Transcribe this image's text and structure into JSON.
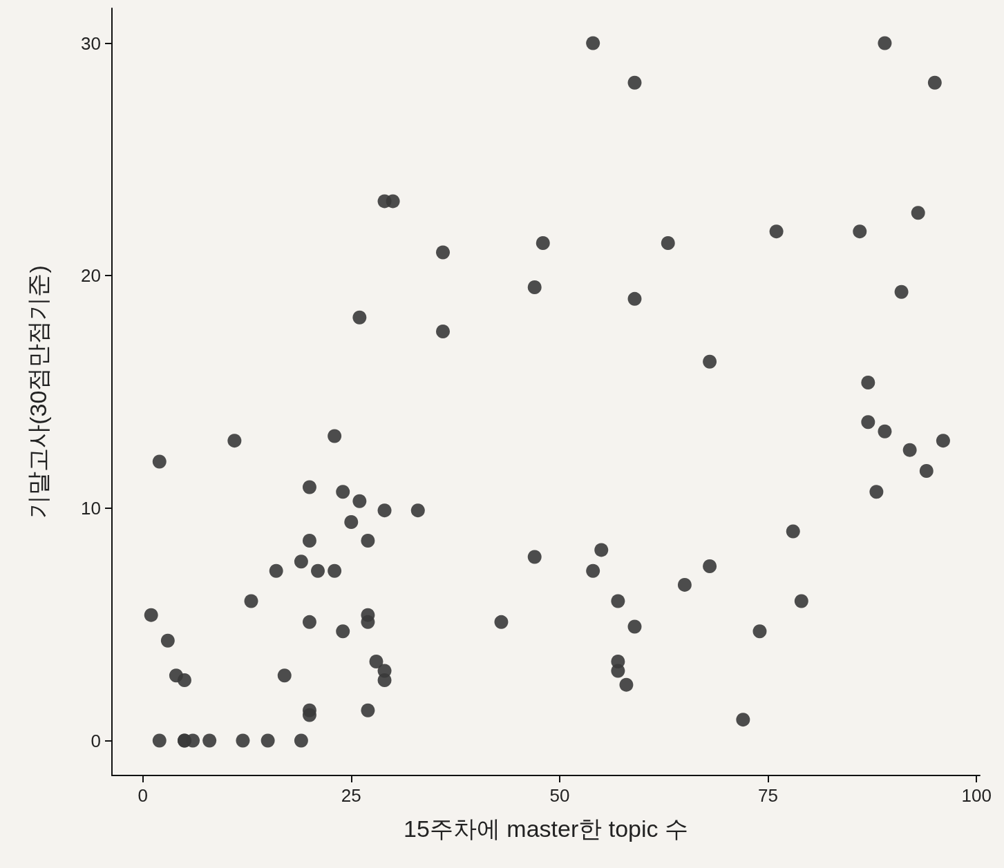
{
  "chart_data": {
    "type": "scatter",
    "xlabel": "15주차에 master한 topic 수",
    "ylabel": "기말고사(30점만점기준)",
    "xlim": [
      -3.7,
      100.4
    ],
    "ylim": [
      -1.5,
      31.5
    ],
    "xticks": [
      0,
      25,
      50,
      75,
      100
    ],
    "yticks": [
      0,
      10,
      20,
      30
    ],
    "grid": false,
    "marker": "circle",
    "series": [
      {
        "color": "#3a3a3a",
        "x": [
          54,
          89,
          59,
          95,
          29,
          30,
          93,
          76,
          86,
          48,
          63,
          36,
          47,
          91,
          59,
          26,
          36,
          68,
          87,
          87,
          89,
          11,
          96,
          23,
          92,
          2,
          94,
          20,
          88,
          24,
          26,
          29,
          33,
          25,
          78,
          20,
          27,
          55,
          47,
          19,
          16,
          21,
          23,
          54,
          68,
          65,
          13,
          57,
          79,
          1,
          27,
          27,
          20,
          43,
          59,
          24,
          74,
          3,
          57,
          28,
          29,
          57,
          4,
          17,
          5,
          29,
          58,
          20,
          27,
          20,
          72,
          2,
          5,
          5,
          6,
          8,
          12,
          15,
          19
        ],
        "values": [
          30,
          30,
          28.3,
          28.3,
          23.2,
          23.2,
          22.7,
          21.9,
          21.9,
          21.4,
          21.4,
          21,
          19.5,
          19.3,
          19,
          18.2,
          17.6,
          16.3,
          15.4,
          13.7,
          13.3,
          12.9,
          12.9,
          13.1,
          12.5,
          12,
          11.6,
          10.9,
          10.7,
          10.7,
          10.3,
          9.9,
          9.9,
          9.4,
          9,
          8.6,
          8.6,
          8.2,
          7.9,
          7.7,
          7.3,
          7.3,
          7.3,
          7.3,
          7.5,
          6.7,
          6,
          6,
          6,
          5.4,
          5.4,
          5.1,
          5.1,
          5.1,
          4.9,
          4.7,
          4.7,
          4.3,
          3.4,
          3.4,
          3,
          3,
          2.8,
          2.8,
          2.6,
          2.6,
          2.4,
          1.3,
          1.3,
          1.1,
          0.9,
          0,
          0,
          0,
          0,
          0,
          0,
          0,
          0
        ]
      }
    ]
  }
}
